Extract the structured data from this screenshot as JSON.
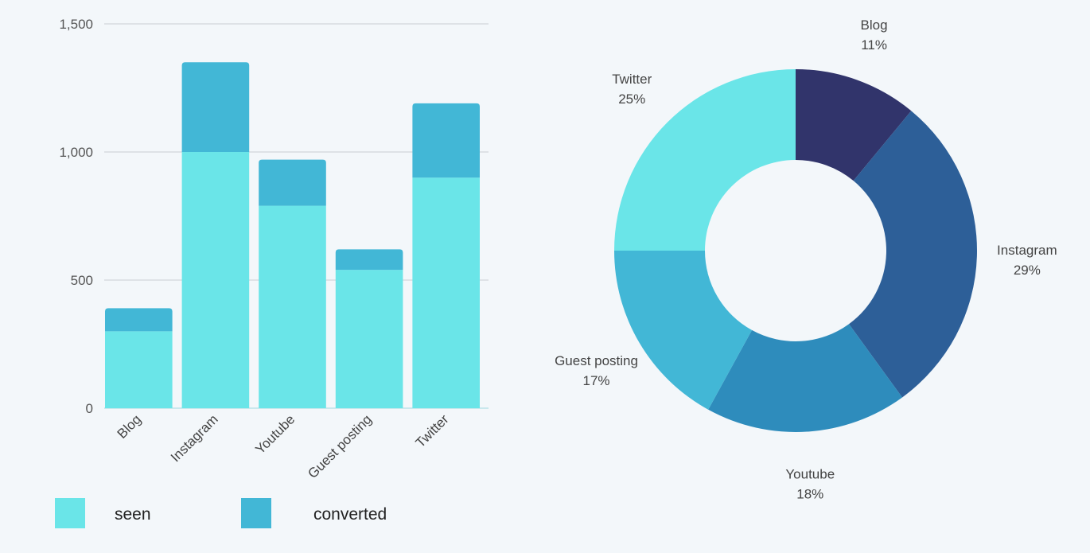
{
  "chart_data": [
    {
      "type": "bar",
      "stacked": true,
      "categories": [
        "Blog",
        "Instagram",
        "Youtube",
        "Guest posting",
        "Twitter"
      ],
      "series": [
        {
          "name": "seen",
          "color": "#6ae5e8",
          "values": [
            300,
            1000,
            790,
            540,
            900
          ]
        },
        {
          "name": "converted",
          "color": "#42b7d6",
          "values": [
            90,
            350,
            180,
            80,
            290
          ]
        }
      ],
      "yticks": [
        0,
        500,
        1000,
        1500
      ],
      "ytick_labels": [
        "0",
        "500",
        "1,000",
        "1,500"
      ],
      "ylim": [
        0,
        1500
      ],
      "grid": true,
      "legend": "bottom-left"
    },
    {
      "type": "pie",
      "donut": true,
      "slices": [
        {
          "label": "Blog",
          "value": 11,
          "percent_label": "11%",
          "color": "#31346b"
        },
        {
          "label": "Instagram",
          "value": 29,
          "percent_label": "29%",
          "color": "#2d5f98"
        },
        {
          "label": "Youtube",
          "value": 18,
          "percent_label": "18%",
          "color": "#2e8cbc"
        },
        {
          "label": "Guest posting",
          "value": 17,
          "percent_label": "17%",
          "color": "#42b7d6"
        },
        {
          "label": "Twitter",
          "value": 25,
          "percent_label": "25%",
          "color": "#6ae5e8"
        }
      ]
    }
  ]
}
